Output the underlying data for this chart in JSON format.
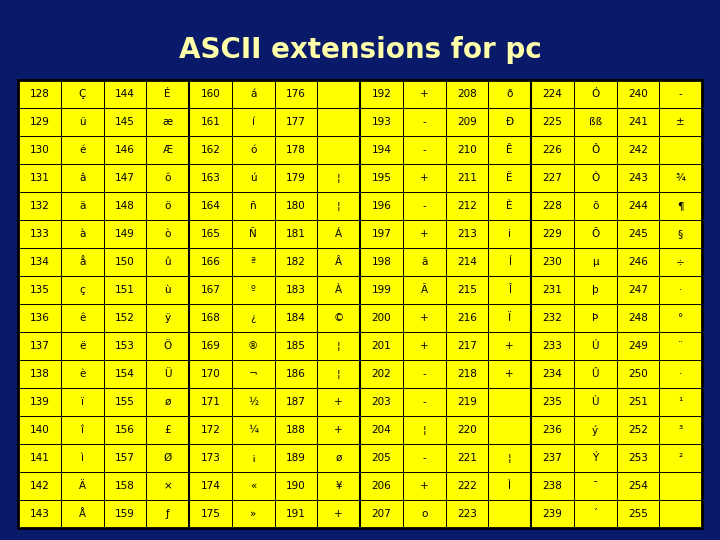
{
  "title": "ASCII extensions for pc",
  "bg_color": "#0a1a6b",
  "title_color": "#ffffaa",
  "cell_bg": "#ffff00",
  "cell_border": "#000000",
  "text_color": "#000000",
  "title_fontsize": 20,
  "cell_fontsize": 7.5,
  "table_data": [
    [
      "128",
      "Ç",
      "144",
      "É",
      "160",
      "á",
      "176",
      "",
      "192",
      "+",
      "208",
      "ð",
      "224",
      "Ó",
      "240",
      "-"
    ],
    [
      "129",
      "ü",
      "145",
      "æ",
      "161",
      "í",
      "177",
      "",
      "193",
      "-",
      "209",
      "Ð",
      "225",
      "ßß",
      "241",
      "±"
    ],
    [
      "130",
      "é",
      "146",
      "Æ",
      "162",
      "ó",
      "178",
      "",
      "194",
      "-",
      "210",
      "Ê",
      "226",
      "Ô",
      "242",
      ""
    ],
    [
      "131",
      "â",
      "147",
      "ô",
      "163",
      "ú",
      "179",
      "¦",
      "195",
      "+",
      "211",
      "Ë",
      "227",
      "Ò",
      "243",
      "¾"
    ],
    [
      "132",
      "ä",
      "148",
      "ö",
      "164",
      "ñ",
      "180",
      "¦",
      "196",
      "-",
      "212",
      "È",
      "228",
      "õ",
      "244",
      "¶"
    ],
    [
      "133",
      "à",
      "149",
      "ò",
      "165",
      "Ñ",
      "181",
      "Á",
      "197",
      "+",
      "213",
      "i",
      "229",
      "Õ",
      "245",
      "§"
    ],
    [
      "134",
      "å",
      "150",
      "û",
      "166",
      "ª",
      "182",
      "Â",
      "198",
      "ã",
      "214",
      "Í",
      "230",
      "µ",
      "246",
      "÷"
    ],
    [
      "135",
      "ç",
      "151",
      "ù",
      "167",
      "º",
      "183",
      "À",
      "199",
      "Ã",
      "215",
      "Î",
      "231",
      "þ",
      "247",
      "·"
    ],
    [
      "136",
      "ê",
      "152",
      "ÿ",
      "168",
      "¿",
      "184",
      "©",
      "200",
      "+",
      "216",
      "Ï",
      "232",
      "Þ",
      "248",
      "°"
    ],
    [
      "137",
      "ë",
      "153",
      "Ö",
      "169",
      "®",
      "185",
      "¦",
      "201",
      "+",
      "217",
      "+",
      "233",
      "Ú",
      "249",
      "¨"
    ],
    [
      "138",
      "è",
      "154",
      "Ü",
      "170",
      "¬",
      "186",
      "¦",
      "202",
      "-",
      "218",
      "+",
      "234",
      "Û",
      "250",
      "·"
    ],
    [
      "139",
      "ï",
      "155",
      "ø",
      "171",
      "½",
      "187",
      "+",
      "203",
      "-",
      "219",
      "",
      "235",
      "Ù",
      "251",
      "¹"
    ],
    [
      "140",
      "î",
      "156",
      "£",
      "172",
      "¼",
      "188",
      "+",
      "204",
      "¦",
      "220",
      "",
      "236",
      "ý",
      "252",
      "³"
    ],
    [
      "141",
      "ì",
      "157",
      "Ø",
      "173",
      "¡",
      "189",
      "ø",
      "205",
      "-",
      "221",
      "¦",
      "237",
      "Ý",
      "253",
      "²"
    ],
    [
      "142",
      "Ä",
      "158",
      "×",
      "174",
      "«",
      "190",
      "¥",
      "206",
      "+",
      "222",
      "Ì",
      "238",
      "¯",
      "254",
      ""
    ],
    [
      "143",
      "Å",
      "159",
      "ƒ",
      "175",
      "»",
      "191",
      "+",
      "207",
      "o",
      "223",
      "",
      "239",
      "´",
      "255",
      ""
    ]
  ]
}
